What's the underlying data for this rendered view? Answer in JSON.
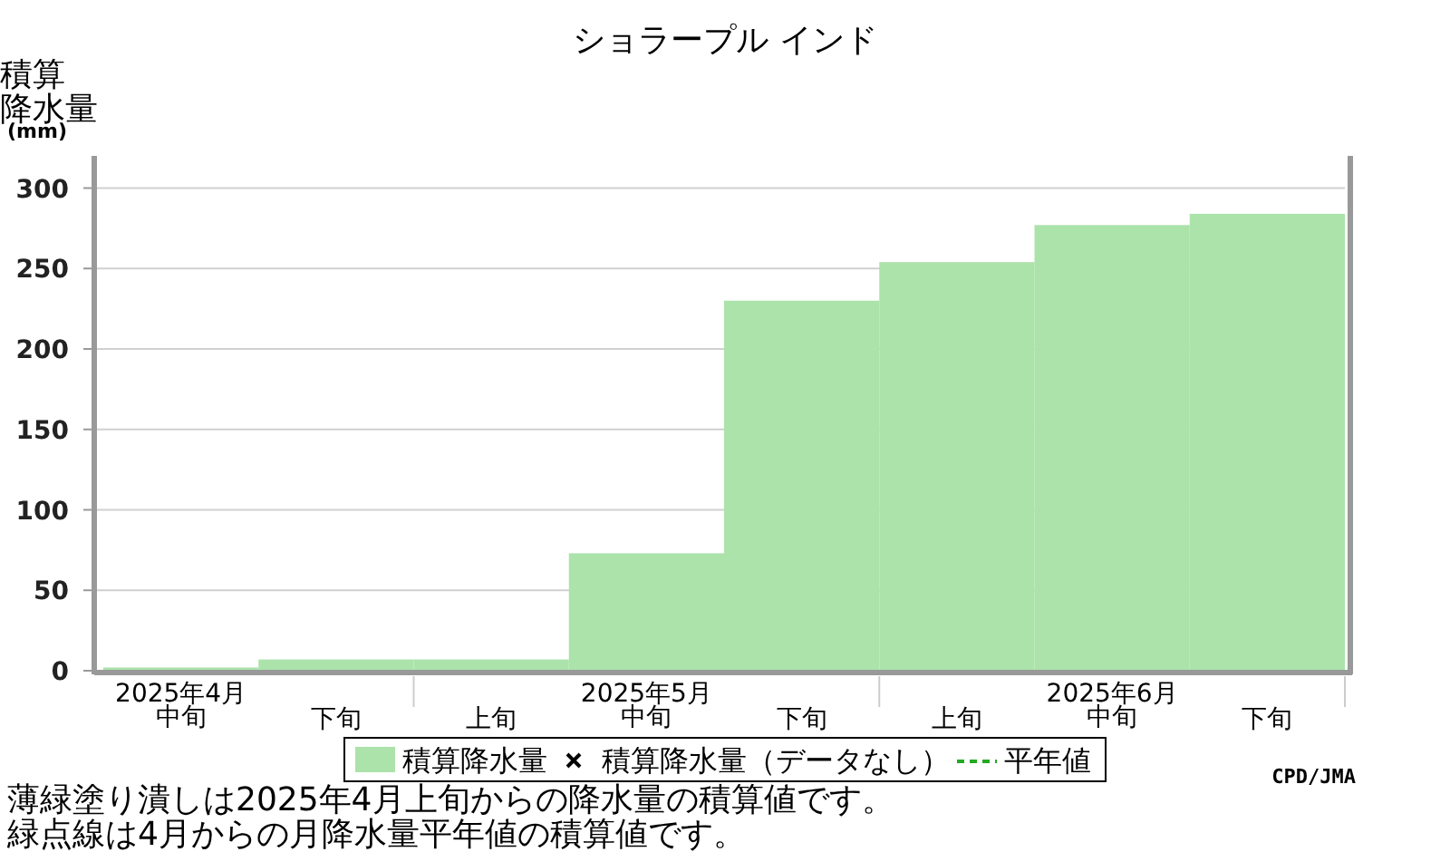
{
  "chart_data": {
    "type": "bar",
    "title": "ショラープル インド",
    "ylabel": "積算降水量(mm)",
    "categories": [
      "2025年4月中旬",
      "下旬",
      "上旬",
      "2025年5月中旬",
      "下旬",
      "上旬",
      "2025年6月中旬",
      "下旬"
    ],
    "series": [
      {
        "name": "積算降水量",
        "color": "#abe3aa",
        "values": [
          2,
          7,
          7,
          73,
          230,
          254,
          277,
          284
        ]
      },
      {
        "name": "積算降水量（データなし）",
        "type": "scatter",
        "marker": "cross",
        "color": "#000000",
        "values": [
          null,
          null,
          null,
          null,
          null,
          null,
          null,
          null
        ]
      },
      {
        "name": "平年値",
        "type": "line",
        "line_style": "dashed",
        "color": "#22aa22",
        "values": [
          null,
          null,
          null,
          null,
          null,
          null,
          null,
          null
        ]
      }
    ],
    "ylim": [
      0,
      320
    ],
    "yticks": [
      0,
      50,
      100,
      150,
      200,
      250,
      300
    ],
    "grid": "y",
    "legend": "bottom",
    "annotations": [
      "CPD/JMA",
      "薄緑塗り潰しは2025年4月上旬からの降水量の積算値です。",
      "緑点線は4月からの月降水量平年値の積算値です。"
    ]
  }
}
